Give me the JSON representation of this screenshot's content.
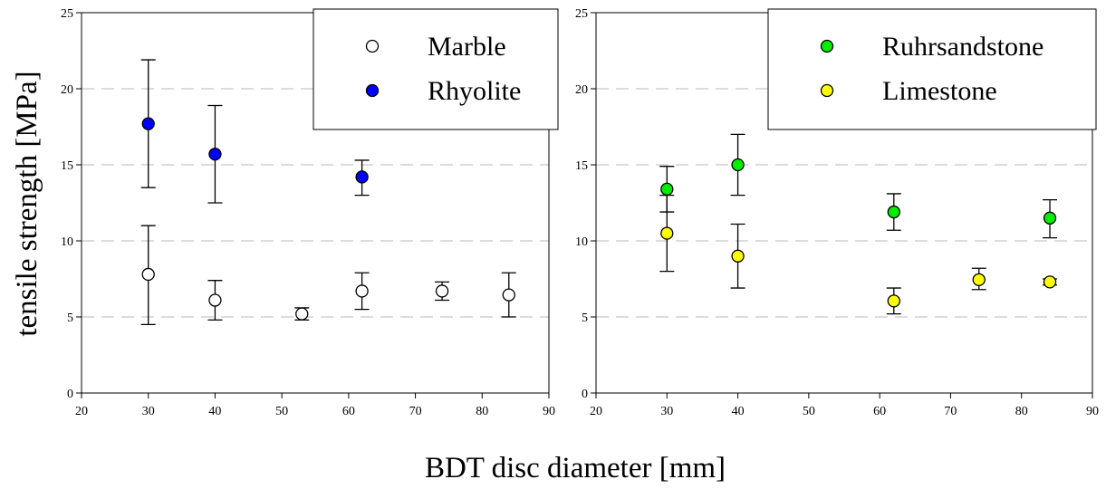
{
  "figure": {
    "ylabel": "tensile strength [MPa]",
    "xlabel": "BDT disc diameter [mm]"
  },
  "chart_data": [
    {
      "type": "scatter",
      "xlim": [
        20,
        90
      ],
      "ylim": [
        0,
        25
      ],
      "xticks": [
        20,
        30,
        40,
        50,
        60,
        70,
        80,
        90
      ],
      "yticks": [
        0,
        5,
        10,
        15,
        20,
        25
      ],
      "grid": "horizontal dashed",
      "legend": "top-right",
      "series": [
        {
          "name": "Marble",
          "color": "#ffffff",
          "points": [
            {
              "x": 30,
              "y": 7.8,
              "lo": 4.5,
              "hi": 11.0
            },
            {
              "x": 40,
              "y": 6.1,
              "lo": 4.8,
              "hi": 7.4
            },
            {
              "x": 53,
              "y": 5.2,
              "lo": 4.8,
              "hi": 5.6
            },
            {
              "x": 62,
              "y": 6.7,
              "lo": 5.5,
              "hi": 7.9
            },
            {
              "x": 74,
              "y": 6.7,
              "lo": 6.1,
              "hi": 7.3
            },
            {
              "x": 84,
              "y": 6.45,
              "lo": 5.0,
              "hi": 7.9
            }
          ]
        },
        {
          "name": "Rhyolite",
          "color": "#0000ff",
          "points": [
            {
              "x": 30,
              "y": 17.7,
              "lo": 13.5,
              "hi": 21.9
            },
            {
              "x": 40,
              "y": 15.7,
              "lo": 12.5,
              "hi": 18.9
            },
            {
              "x": 62,
              "y": 14.2,
              "lo": 13.0,
              "hi": 15.3
            }
          ]
        }
      ]
    },
    {
      "type": "scatter",
      "xlim": [
        20,
        90
      ],
      "ylim": [
        0,
        25
      ],
      "xticks": [
        20,
        30,
        40,
        50,
        60,
        70,
        80,
        90
      ],
      "yticks": [
        0,
        5,
        10,
        15,
        20,
        25
      ],
      "grid": "horizontal dashed",
      "legend": "top-right",
      "series": [
        {
          "name": "Ruhrsandstone",
          "color": "#00ee00",
          "points": [
            {
              "x": 30,
              "y": 13.4,
              "lo": 11.9,
              "hi": 14.9
            },
            {
              "x": 40,
              "y": 15.0,
              "lo": 13.0,
              "hi": 17.0
            },
            {
              "x": 62,
              "y": 11.9,
              "lo": 10.7,
              "hi": 13.1
            },
            {
              "x": 84,
              "y": 11.5,
              "lo": 10.2,
              "hi": 12.7
            }
          ]
        },
        {
          "name": "Limestone",
          "color": "#ffff00",
          "points": [
            {
              "x": 30,
              "y": 10.5,
              "lo": 8.0,
              "hi": 13.0
            },
            {
              "x": 40,
              "y": 9.0,
              "lo": 6.9,
              "hi": 11.1
            },
            {
              "x": 62,
              "y": 6.05,
              "lo": 5.2,
              "hi": 6.9
            },
            {
              "x": 74,
              "y": 7.45,
              "lo": 6.8,
              "hi": 8.2
            },
            {
              "x": 84,
              "y": 7.3,
              "lo": 7.1,
              "hi": 7.5
            }
          ]
        }
      ]
    }
  ]
}
